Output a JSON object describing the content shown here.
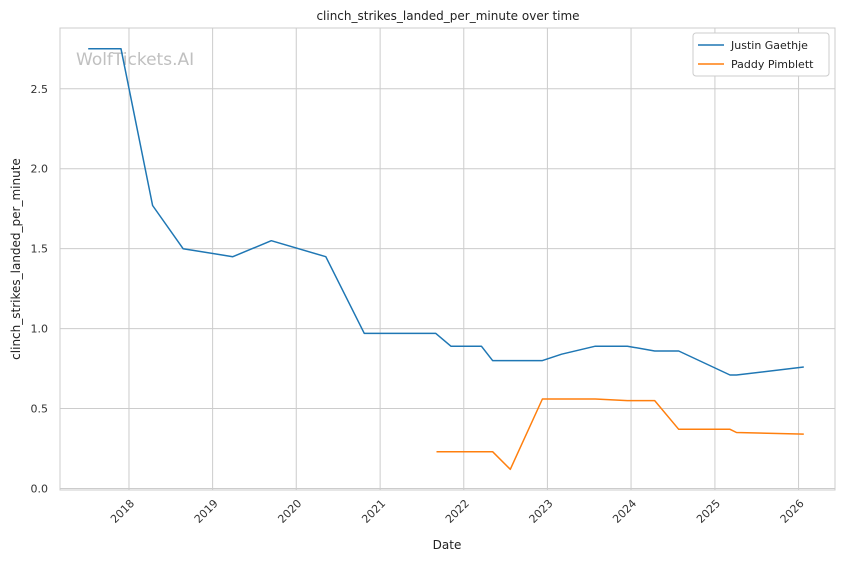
{
  "watermark": "WolfTickets.AI",
  "chart_data": {
    "type": "line",
    "title": "clinch_strikes_landed_per_minute over time",
    "xlabel": "Date",
    "ylabel": "clinch_strikes_landed_per_minute",
    "xlim": [
      "2017-03-06",
      "2026-06-09"
    ],
    "ylim": [
      0,
      2.88
    ],
    "x_ticks": [
      "2018",
      "2019",
      "2020",
      "2021",
      "2022",
      "2023",
      "2024",
      "2025",
      "2026"
    ],
    "y_ticks": [
      "0.0",
      "0.5",
      "1.0",
      "1.5",
      "2.0",
      "2.5"
    ],
    "grid": true,
    "legend_position": "top-right",
    "series": [
      {
        "name": "Justin Gaethje",
        "color": "#1f77b4",
        "points": [
          [
            "2017-07-07",
            2.75
          ],
          [
            "2017-11-27",
            2.75
          ],
          [
            "2018-04-14",
            1.77
          ],
          [
            "2018-08-25",
            1.5
          ],
          [
            "2019-03-30",
            1.45
          ],
          [
            "2019-09-14",
            1.55
          ],
          [
            "2020-05-09",
            1.45
          ],
          [
            "2020-10-24",
            0.97
          ],
          [
            "2021-09-01",
            0.97
          ],
          [
            "2021-11-06",
            0.89
          ],
          [
            "2022-03-19",
            0.89
          ],
          [
            "2022-05-07",
            0.8
          ],
          [
            "2022-12-10",
            0.8
          ],
          [
            "2023-03-04",
            0.84
          ],
          [
            "2023-07-29",
            0.89
          ],
          [
            "2023-12-16",
            0.89
          ],
          [
            "2024-04-13",
            0.86
          ],
          [
            "2024-07-27",
            0.86
          ],
          [
            "2025-03-08",
            0.71
          ],
          [
            "2025-04-05",
            0.71
          ],
          [
            "2026-01-24",
            0.76
          ]
        ]
      },
      {
        "name": "Paddy Pimblett",
        "color": "#ff7f0e",
        "points": [
          [
            "2021-09-04",
            0.23
          ],
          [
            "2022-03-19",
            0.23
          ],
          [
            "2022-05-07",
            0.23
          ],
          [
            "2022-07-23",
            0.12
          ],
          [
            "2022-12-10",
            0.56
          ],
          [
            "2023-07-29",
            0.56
          ],
          [
            "2023-12-16",
            0.55
          ],
          [
            "2024-04-13",
            0.55
          ],
          [
            "2024-07-27",
            0.37
          ],
          [
            "2025-03-08",
            0.37
          ],
          [
            "2025-04-05",
            0.35
          ],
          [
            "2026-01-24",
            0.34
          ]
        ]
      }
    ]
  }
}
